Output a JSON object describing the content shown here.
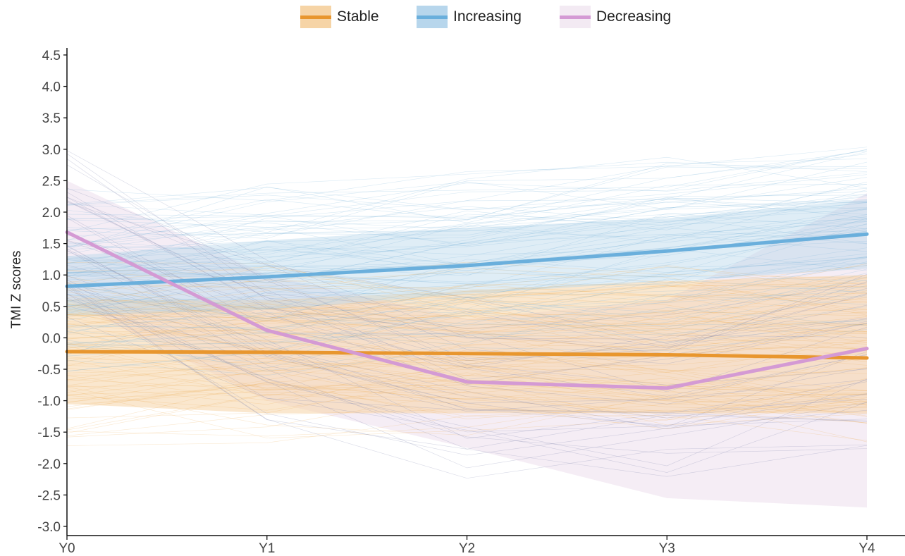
{
  "chart_data": {
    "type": "line",
    "title": "",
    "xlabel": "",
    "ylabel": "TMI Z scores",
    "categories": [
      "Y0",
      "Y1",
      "Y2",
      "Y3",
      "Y4"
    ],
    "y_ticks": [
      "4.5",
      "4.0",
      "3.5",
      "3.0",
      "2.5",
      "2.0",
      "1.5",
      "1.0",
      "0.5",
      "0.0",
      "-0.5",
      "-1.0",
      "-1.5",
      "-2.0",
      "-2.5",
      "-3.0"
    ],
    "ylim": [
      -3.05,
      4.6
    ],
    "grid": false,
    "legend_position": "top-center",
    "series": [
      {
        "name": "Stable",
        "color": "#e8962e",
        "band_color": "#f6d4a6",
        "values": [
          -0.22,
          -0.23,
          -0.25,
          -0.27,
          -0.32
        ],
        "band_lower": [
          -1.05,
          -1.2,
          -1.2,
          -1.2,
          -1.2
        ],
        "band_upper": [
          0.6,
          0.6,
          0.75,
          0.9,
          1.0
        ]
      },
      {
        "name": "Increasing",
        "color": "#6aafdc",
        "band_color": "#b7d6ec",
        "values": [
          0.82,
          0.97,
          1.15,
          1.38,
          1.65
        ],
        "band_lower": [
          0.35,
          0.45,
          0.7,
          0.9,
          1.1
        ],
        "band_upper": [
          1.3,
          1.55,
          1.75,
          1.9,
          2.2
        ]
      },
      {
        "name": "Decreasing",
        "color": "#d49ad4",
        "band_color": "#f3eaf3",
        "values": [
          1.68,
          0.12,
          -0.7,
          -0.8,
          -0.17
        ],
        "band_lower": [
          0.6,
          -1.0,
          -1.75,
          -2.55,
          -2.7
        ],
        "band_upper": [
          2.5,
          1.0,
          0.3,
          0.6,
          2.3
        ]
      }
    ]
  }
}
